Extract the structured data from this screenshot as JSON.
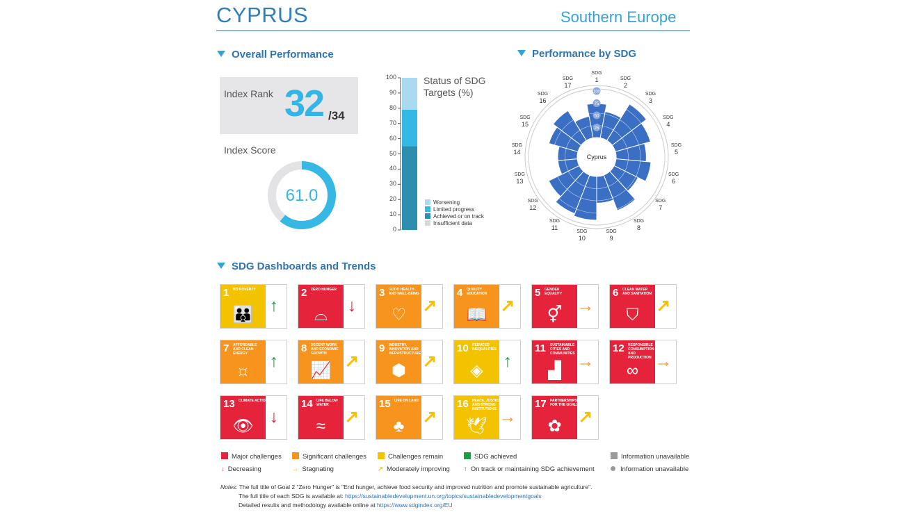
{
  "header": {
    "country": "CYPRUS",
    "region": "Southern Europe"
  },
  "overall": {
    "title": "Overall Performance",
    "rank_label": "Index Rank",
    "rank": "32",
    "rank_total": "/34",
    "score_label": "Index Score",
    "score": "61.0",
    "score_fraction": 0.61
  },
  "chart_data": [
    {
      "type": "bar",
      "title": "Status of SDG Targets (%)",
      "ylim": [
        0,
        100
      ],
      "yticks": [
        "0",
        "10",
        "20",
        "30",
        "40",
        "50",
        "60",
        "70",
        "80",
        "90",
        "100"
      ],
      "series": [
        {
          "name": "Achieved or on track",
          "values": [
            55
          ]
        },
        {
          "name": "Limited progress",
          "values": [
            24
          ]
        },
        {
          "name": "Worsening",
          "values": [
            21
          ]
        },
        {
          "name": "Insufficient data",
          "values": [
            0
          ]
        }
      ],
      "colors": {
        "Worsening": "#a9daf0",
        "Limited progress": "#35b8e3",
        "Achieved or on track": "#2d8fb0",
        "Insufficient data": "#d8d8d8"
      }
    },
    {
      "type": "radar",
      "title": "Performance by SDG",
      "center_label": "Cyprus",
      "ring_labels": [
        "25",
        "50",
        "75",
        "100"
      ],
      "categories": [
        "SDG 1",
        "SDG 2",
        "SDG 3",
        "SDG 4",
        "SDG 5",
        "SDG 6",
        "SDG 7",
        "SDG 8",
        "SDG 9",
        "SDG 10",
        "SDG 11",
        "SDG 12",
        "SDG 13",
        "SDG 14",
        "SDG 15",
        "SDG 16",
        "SDG 17"
      ],
      "values": [
        70,
        55,
        88,
        75,
        62,
        72,
        55,
        78,
        55,
        90,
        85,
        70,
        40,
        40,
        62,
        72,
        45
      ],
      "color": "#3a6fc4"
    }
  ],
  "perf_sdg": {
    "title": "Performance by SDG"
  },
  "sdg_labels": {
    "prefix": "SDG",
    "nums": [
      "1",
      "2",
      "3",
      "4",
      "5",
      "6",
      "7",
      "8",
      "9",
      "10",
      "11",
      "12",
      "13",
      "14",
      "15",
      "16",
      "17"
    ]
  },
  "dashboard": {
    "title": "SDG Dashboards and Trends",
    "tiles": [
      {
        "num": "1",
        "label": "No poverty",
        "color": "#f4c300",
        "icon": "people-icon",
        "glyph": "👪",
        "trend": "on-track",
        "arrow": "↑",
        "arrow_color": "#1e9e48"
      },
      {
        "num": "2",
        "label": "Zero hunger",
        "color": "#e5243b",
        "icon": "bowl-icon",
        "glyph": "⌓",
        "trend": "decreasing",
        "arrow": "↓",
        "arrow_color": "#e5243b"
      },
      {
        "num": "3",
        "label": "Good health and well-being",
        "color": "#f7941d",
        "icon": "heartbeat-icon",
        "glyph": "♡",
        "trend": "moderately-improving",
        "arrow": "↗",
        "arrow_color": "#f4c300"
      },
      {
        "num": "4",
        "label": "Quality education",
        "color": "#f7941d",
        "icon": "book-icon",
        "glyph": "📖",
        "trend": "moderately-improving",
        "arrow": "↗",
        "arrow_color": "#f4c300"
      },
      {
        "num": "5",
        "label": "Gender equality",
        "color": "#e5243b",
        "icon": "gender-icon",
        "glyph": "⚥",
        "trend": "stagnating",
        "arrow": "→",
        "arrow_color": "#f7941d"
      },
      {
        "num": "6",
        "label": "Clean water and sanitation",
        "color": "#e5243b",
        "icon": "water-icon",
        "glyph": "⛉",
        "trend": "moderately-improving",
        "arrow": "↗",
        "arrow_color": "#f4c300"
      },
      {
        "num": "7",
        "label": "Affordable and clean energy",
        "color": "#f7941d",
        "icon": "sun-icon",
        "glyph": "☼",
        "trend": "on-track",
        "arrow": "↑",
        "arrow_color": "#1e9e48"
      },
      {
        "num": "8",
        "label": "Decent work and economic growth",
        "color": "#f7941d",
        "icon": "growth-chart-icon",
        "glyph": "📈",
        "trend": "moderately-improving",
        "arrow": "↗",
        "arrow_color": "#f4c300"
      },
      {
        "num": "9",
        "label": "Industry, innovation and infrastructure",
        "color": "#f7941d",
        "icon": "cubes-icon",
        "glyph": "⬢",
        "trend": "moderately-improving",
        "arrow": "↗",
        "arrow_color": "#f4c300"
      },
      {
        "num": "10",
        "label": "Reduced inequalities",
        "color": "#f4c300",
        "icon": "equality-icon",
        "glyph": "◈",
        "trend": "on-track",
        "arrow": "↑",
        "arrow_color": "#1e9e48"
      },
      {
        "num": "11",
        "label": "Sustainable cities and communities",
        "color": "#e5243b",
        "icon": "city-icon",
        "glyph": "▟",
        "trend": "stagnating",
        "arrow": "→",
        "arrow_color": "#f7941d"
      },
      {
        "num": "12",
        "label": "Responsible consumption and production",
        "color": "#e5243b",
        "icon": "infinity-icon",
        "glyph": "∞",
        "trend": "stagnating",
        "arrow": "→",
        "arrow_color": "#f7941d"
      },
      {
        "num": "13",
        "label": "Climate action",
        "color": "#e5243b",
        "icon": "eye-globe-icon",
        "glyph": "👁",
        "trend": "decreasing",
        "arrow": "↓",
        "arrow_color": "#e5243b"
      },
      {
        "num": "14",
        "label": "Life below water",
        "color": "#e5243b",
        "icon": "fish-icon",
        "glyph": "≈",
        "trend": "moderately-improving",
        "arrow": "↗",
        "arrow_color": "#f4c300"
      },
      {
        "num": "15",
        "label": "Life on land",
        "color": "#f7941d",
        "icon": "tree-icon",
        "glyph": "♣",
        "trend": "moderately-improving",
        "arrow": "↗",
        "arrow_color": "#f4c300"
      },
      {
        "num": "16",
        "label": "Peace, justice and strong institutions",
        "color": "#f4c300",
        "icon": "dove-icon",
        "glyph": "🕊",
        "trend": "stagnating",
        "arrow": "→",
        "arrow_color": "#f7941d"
      },
      {
        "num": "17",
        "label": "Partnerships for the goals",
        "color": "#e5243b",
        "icon": "flower-icon",
        "glyph": "✿",
        "trend": "moderately-improving",
        "arrow": "↗",
        "arrow_color": "#f4c300"
      }
    ]
  },
  "legend": {
    "major": "Major challenges",
    "significant": "Significant challenges",
    "remain": "Challenges remain",
    "achieved": "SDG achieved",
    "info_na": "Information unavailable",
    "decreasing": "Decreasing",
    "stagnating": "Stagnating",
    "moderately": "Moderately improving",
    "on_track": "On track or maintaining SDG achievement",
    "info_na2": "Information unavailable",
    "colors": {
      "major": "#e5243b",
      "significant": "#f7941d",
      "remain": "#f4c300",
      "achieved": "#1e9e48",
      "na": "#9a9a9a"
    }
  },
  "notes": {
    "label": "Notes:",
    "line1": "The full title of Goal 2 \"Zero Hunger\" is \"End hunger, achieve food security and improved nutrition and promote sustainable agriculture\".",
    "line2_pre": "The full title of each SDG is available at:",
    "line2_link": "https://sustainabledevelopment.un.org/topics/sustainabledevelopmentgoals",
    "line3_pre": "Detailed results and methodology available online at",
    "line3_link": "https://www.sdgindex.org/EU"
  }
}
